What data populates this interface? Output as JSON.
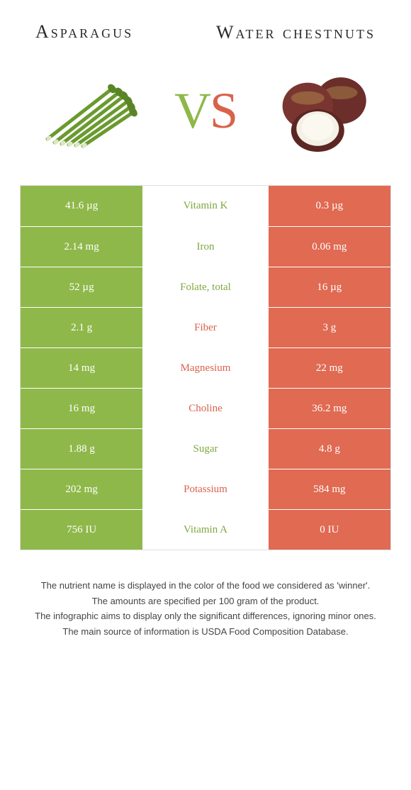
{
  "titles": {
    "left": "Asparagus",
    "right": "Water chestnuts"
  },
  "vs": {
    "v": "V",
    "s": "S"
  },
  "colors": {
    "left_bg": "#8fb84a",
    "right_bg": "#e06a52",
    "green_text": "#7fa83f",
    "orange_text": "#d9624a",
    "background": "#ffffff"
  },
  "table": {
    "rows": [
      {
        "left": "41.6 µg",
        "label": "Vitamin K",
        "winner": "green",
        "right": "0.3 µg"
      },
      {
        "left": "2.14 mg",
        "label": "Iron",
        "winner": "green",
        "right": "0.06 mg"
      },
      {
        "left": "52 µg",
        "label": "Folate, total",
        "winner": "green",
        "right": "16 µg"
      },
      {
        "left": "2.1 g",
        "label": "Fiber",
        "winner": "orange",
        "right": "3 g"
      },
      {
        "left": "14 mg",
        "label": "Magnesium",
        "winner": "orange",
        "right": "22 mg"
      },
      {
        "left": "16 mg",
        "label": "Choline",
        "winner": "orange",
        "right": "36.2 mg"
      },
      {
        "left": "1.88 g",
        "label": "Sugar",
        "winner": "green",
        "right": "4.8 g"
      },
      {
        "left": "202 mg",
        "label": "Potassium",
        "winner": "orange",
        "right": "584 mg"
      },
      {
        "left": "756 IU",
        "label": "Vitamin A",
        "winner": "green",
        "right": "0 IU"
      }
    ]
  },
  "footer": {
    "lines": [
      "The nutrient name is displayed in the color of the food we considered as 'winner'.",
      "The amounts are specified per 100 gram of the product.",
      "The infographic aims to display only the significant differences, ignoring minor ones.",
      "The main source of information is USDA Food Composition Database."
    ]
  }
}
